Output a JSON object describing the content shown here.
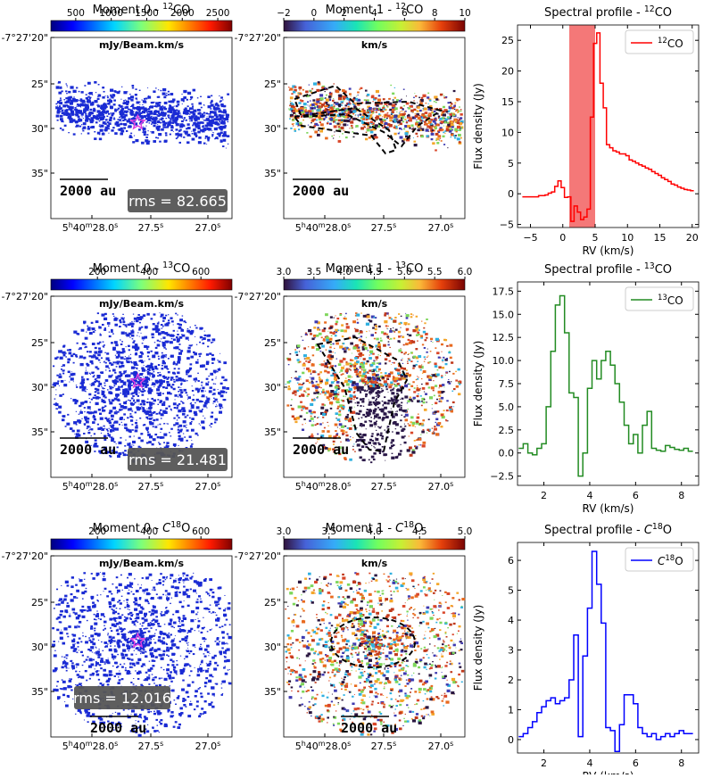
{
  "colors": {
    "co12": "#ff0000",
    "co13": "#228b22",
    "c18o": "#0000ff",
    "velband": "#f26060",
    "emission": "#1a2bd4",
    "star": "#e040e0",
    "badge": "#555555",
    "contour": "#000000"
  },
  "rows": [
    {
      "moment0": {
        "title_main": "Moment 0 - ",
        "title_sup": "12",
        "title_mol": "CO",
        "cbar_ticks": [
          "500",
          "1000",
          "1500",
          "2000",
          "2500"
        ],
        "cbar_tick_vals": [
          500,
          1000,
          1500,
          2000,
          2500
        ],
        "cbar_range": [
          150,
          2700
        ],
        "unit": "mJy/Beam.km/s",
        "rms": "rms = 82.665",
        "scalebar": "2000 au"
      },
      "moment1": {
        "title_main": "Moment 1 - ",
        "title_sup": "12",
        "title_mol": "CO",
        "cbar_ticks": [
          "−2",
          "0",
          "2",
          "4",
          "6",
          "8",
          "10"
        ],
        "cbar_tick_vals": [
          -2,
          0,
          2,
          4,
          6,
          8,
          10
        ],
        "cbar_range": [
          -2,
          10
        ],
        "unit": "km/s",
        "scalebar": "2000 au"
      },
      "yticks": [
        "-7°27'20\"",
        "25\"",
        "30\"",
        "35\""
      ],
      "xticks": [
        "5h40m28.0s",
        "27.5s",
        "27.0s"
      ],
      "xtick_main": [
        "5",
        "h",
        "40",
        "m",
        "28.0",
        "s"
      ],
      "xtick_labels": [
        [
          "27.5",
          "s"
        ],
        [
          "27.0",
          "s"
        ]
      ]
    },
    {
      "moment0": {
        "title_main": "Moment 0 - ",
        "title_sup": "13",
        "title_mol": "CO",
        "cbar_ticks": [
          "200",
          "400",
          "600"
        ],
        "cbar_tick_vals": [
          200,
          400,
          600
        ],
        "cbar_range": [
          20,
          720
        ],
        "unit": "mJy/Beam.km/s",
        "rms": "rms = 21.481",
        "scalebar": "2000 au"
      },
      "moment1": {
        "title_main": "Moment 1 - ",
        "title_sup": "13",
        "title_mol": "CO",
        "cbar_ticks": [
          "3.0",
          "3.5",
          "4.0",
          "4.5",
          "5.0",
          "5.5",
          "6.0"
        ],
        "cbar_tick_vals": [
          3.0,
          3.5,
          4.0,
          4.5,
          5.0,
          5.5,
          6.0
        ],
        "cbar_range": [
          3.0,
          6.0
        ],
        "unit": "km/s",
        "scalebar": "2000 au"
      },
      "yticks": [
        "-7°27'20\"",
        "25\"",
        "30\"",
        "35\""
      ],
      "xtick_main": [
        "5",
        "h",
        "40",
        "m",
        "28.0",
        "s"
      ],
      "xtick_labels": [
        [
          "27.5",
          "s"
        ],
        [
          "27.0",
          "s"
        ]
      ]
    },
    {
      "moment0": {
        "title_main": "Moment 0 - ",
        "title_sup": "18",
        "title_mol": "O",
        "title_c": "C",
        "cbar_ticks": [
          "200",
          "400",
          "600"
        ],
        "cbar_tick_vals": [
          200,
          400,
          600
        ],
        "cbar_range": [
          20,
          720
        ],
        "unit": "mJy/Beam.km/s",
        "rms": "rms = 12.016",
        "scalebar": "2000 au"
      },
      "moment1": {
        "title_main": "Moment 1 - ",
        "title_sup": "18",
        "title_mol": "O",
        "title_c": "C",
        "cbar_ticks": [
          "3.0",
          "3.5",
          "4.0",
          "4.5",
          "5.0"
        ],
        "cbar_tick_vals": [
          3.0,
          3.5,
          4.0,
          4.5,
          5.0
        ],
        "cbar_range": [
          3.0,
          5.0
        ],
        "unit": "km/s",
        "scalebar": "2000 au"
      },
      "yticks": [
        "-7°27'20\"",
        "25\"",
        "30\"",
        "35\""
      ],
      "xtick_main": [
        "5",
        "h",
        "40",
        "m",
        "28.0",
        "s"
      ],
      "xtick_labels": [
        [
          "27.5",
          "s"
        ],
        [
          "27.0",
          "s"
        ]
      ]
    }
  ],
  "chart_data": [
    {
      "type": "line",
      "step": true,
      "title_main": "Spectral profile - ",
      "title_sup": "12",
      "title_mol": "CO",
      "xlabel": "RV (km/s)",
      "ylabel": "Flux density (Jy)",
      "xlim": [
        -7,
        21
      ],
      "ylim": [
        -5.5,
        27.5
      ],
      "xticks": [
        -5,
        0,
        5,
        10,
        15,
        20
      ],
      "yticks": [
        -5,
        0,
        5,
        10,
        15,
        20,
        25
      ],
      "ytick_labels": [
        "−5",
        "0",
        "5",
        "10",
        "15",
        "20",
        "25"
      ],
      "xtick_labels": [
        "−5",
        "0",
        "5",
        "10",
        "15",
        "20"
      ],
      "shaded_range": [
        1.0,
        5.0
      ],
      "legend": "CO",
      "legend_sup": "12",
      "series": [
        {
          "name": "12CO",
          "x": [
            -6.0,
            -5.5,
            -5.0,
            -4.5,
            -4.0,
            -3.5,
            -3.0,
            -2.5,
            -2.0,
            -1.5,
            -1.0,
            -0.5,
            0.0,
            0.5,
            1.0,
            1.5,
            2.0,
            2.5,
            3.0,
            3.5,
            4.0,
            4.5,
            5.0,
            5.5,
            6.0,
            6.5,
            7.0,
            7.5,
            8.0,
            8.5,
            9.0,
            9.5,
            10.0,
            10.5,
            11.0,
            11.5,
            12.0,
            12.5,
            13.0,
            13.5,
            14.0,
            14.5,
            15.0,
            15.5,
            16.0,
            16.5,
            17.0,
            17.5,
            18.0,
            18.5,
            19.0,
            19.5,
            20.0
          ],
          "values": [
            -0.5,
            -0.5,
            -0.5,
            -0.5,
            -0.5,
            -0.3,
            -0.3,
            -0.2,
            0.1,
            0.3,
            1.2,
            2.1,
            1.0,
            -0.6,
            -0.5,
            -4.5,
            -2.0,
            -3.0,
            -4.2,
            -3.8,
            -2.5,
            12.5,
            24.5,
            26.2,
            18.0,
            14.0,
            8.0,
            7.5,
            7.0,
            6.8,
            6.5,
            6.5,
            6.2,
            5.5,
            5.3,
            5.0,
            4.7,
            4.5,
            4.2,
            4.0,
            3.6,
            3.3,
            3.0,
            2.6,
            2.3,
            2.0,
            1.6,
            1.4,
            1.1,
            0.9,
            0.7,
            0.6,
            0.5
          ]
        }
      ]
    },
    {
      "type": "line",
      "step": true,
      "title_main": "Spectral profile - ",
      "title_sup": "13",
      "title_mol": "CO",
      "xlabel": "RV (km/s)",
      "ylabel": "Flux density (Jy)",
      "xlim": [
        0.85,
        8.75
      ],
      "ylim": [
        -3.5,
        18.5
      ],
      "xticks": [
        2,
        4,
        6,
        8
      ],
      "yticks": [
        -2.5,
        0.0,
        2.5,
        5.0,
        7.5,
        10.0,
        12.5,
        15.0,
        17.5
      ],
      "ytick_labels": [
        "−2.5",
        "0.0",
        "2.5",
        "5.0",
        "7.5",
        "10.0",
        "12.5",
        "15.0",
        "17.5"
      ],
      "xtick_labels": [
        "2",
        "4",
        "6",
        "8"
      ],
      "legend": "CO",
      "legend_sup": "13",
      "series": [
        {
          "name": "13CO",
          "x": [
            1.0,
            1.2,
            1.4,
            1.6,
            1.8,
            2.0,
            2.2,
            2.4,
            2.6,
            2.8,
            3.0,
            3.2,
            3.4,
            3.6,
            3.8,
            4.0,
            4.2,
            4.4,
            4.6,
            4.8,
            5.0,
            5.2,
            5.4,
            5.6,
            5.8,
            6.0,
            6.2,
            6.4,
            6.6,
            6.8,
            7.0,
            7.2,
            7.4,
            7.6,
            7.8,
            8.0,
            8.2,
            8.4
          ],
          "values": [
            0.5,
            1.0,
            0.0,
            -0.2,
            0.5,
            1.0,
            5.0,
            11.0,
            16.0,
            17.0,
            13.0,
            6.5,
            6.0,
            -2.5,
            0.0,
            7.0,
            10.0,
            8.0,
            10.0,
            11.0,
            9.5,
            7.5,
            5.5,
            3.0,
            1.0,
            2.0,
            0.0,
            3.0,
            4.5,
            0.5,
            0.3,
            0.2,
            0.8,
            0.6,
            0.4,
            0.3,
            0.5,
            0.2
          ]
        }
      ]
    },
    {
      "type": "line",
      "step": true,
      "title_main": "Spectral profile - ",
      "title_sup": "18",
      "title_mol": "O",
      "title_c": "C",
      "xlabel": "RV (km/s)",
      "ylabel": "Flux density (Jy)",
      "xlim": [
        0.85,
        8.75
      ],
      "ylim": [
        -0.45,
        6.6
      ],
      "xticks": [
        2,
        4,
        6,
        8
      ],
      "yticks": [
        0,
        1,
        2,
        3,
        4,
        5,
        6
      ],
      "ytick_labels": [
        "0",
        "1",
        "2",
        "3",
        "4",
        "5",
        "6"
      ],
      "xtick_labels": [
        "2",
        "4",
        "6",
        "8"
      ],
      "legend": "O",
      "legend_sup": "18",
      "legend_c": "C",
      "series": [
        {
          "name": "C18O",
          "x": [
            1.0,
            1.2,
            1.4,
            1.6,
            1.8,
            2.0,
            2.2,
            2.4,
            2.6,
            2.8,
            3.0,
            3.2,
            3.4,
            3.6,
            3.8,
            4.0,
            4.2,
            4.4,
            4.6,
            4.8,
            5.0,
            5.2,
            5.4,
            5.6,
            5.8,
            6.0,
            6.2,
            6.4,
            6.6,
            6.8,
            7.0,
            7.2,
            7.4,
            7.6,
            7.8,
            8.0,
            8.2,
            8.4
          ],
          "values": [
            0.1,
            0.2,
            0.4,
            0.6,
            0.9,
            1.1,
            1.3,
            1.4,
            1.2,
            1.3,
            1.4,
            2.0,
            3.5,
            0.1,
            2.8,
            4.4,
            6.3,
            5.2,
            3.9,
            0.4,
            0.3,
            -0.4,
            0.5,
            1.5,
            1.5,
            1.2,
            0.4,
            0.2,
            0.1,
            0.2,
            0.0,
            0.1,
            0.2,
            0.1,
            0.2,
            0.3,
            0.2,
            0.2
          ]
        }
      ]
    }
  ]
}
